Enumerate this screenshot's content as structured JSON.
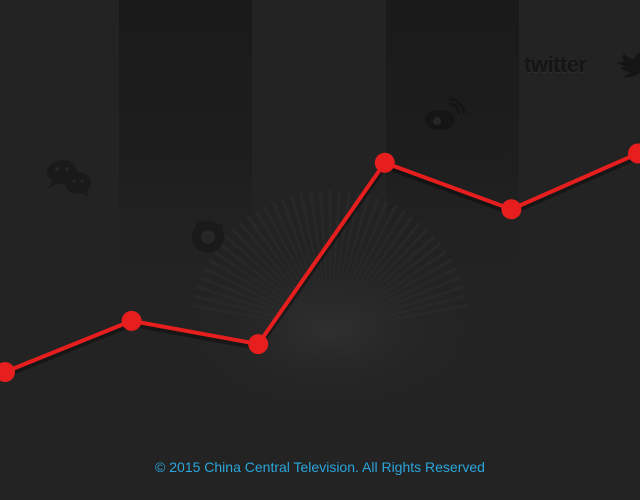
{
  "chart_data": {
    "type": "line",
    "x": [
      0,
      1,
      2,
      3,
      4,
      5
    ],
    "series": [
      {
        "values": [
          20,
          31,
          26,
          65,
          55,
          67
        ]
      }
    ],
    "ylim": [
      0,
      100
    ],
    "grid": false,
    "line_color": "#e61e1e"
  },
  "icons": [
    "wechat-icon",
    "qq-icon",
    "weibo-icon",
    "twitter-logo"
  ],
  "brand": {
    "twitter_text": "twitter"
  },
  "footer": {
    "copyright": "© 2015 China Central Television. All Rights Reserved"
  },
  "colors": {
    "background": "#232323",
    "band_dark": "#1b1b1b",
    "footer_text": "#2aa6dc"
  }
}
